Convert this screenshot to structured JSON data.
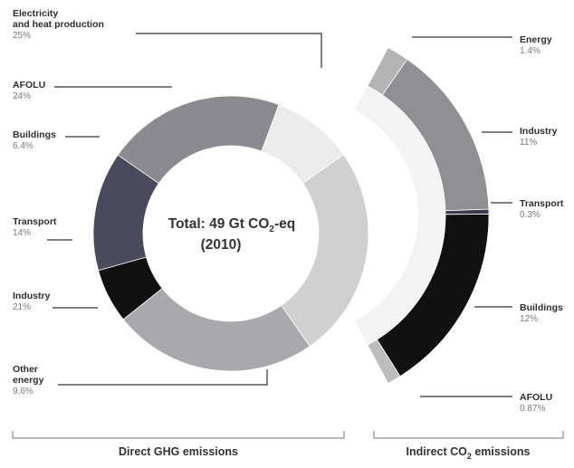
{
  "chart_data": [
    {
      "type": "pie",
      "variant": "donut",
      "group": "Direct GHG emissions",
      "center_label_line1": "Total: 49 Gt CO",
      "center_label_sub": "2",
      "center_label_tail": "-eq",
      "center_label_line2": "(2010)",
      "slices": [
        {
          "name": "Electricity and heat production",
          "label_lines": [
            "Electricity",
            "and heat production"
          ],
          "value_label": "25%",
          "value": 25,
          "color": "#d0d0d0"
        },
        {
          "name": "AFOLU",
          "label_lines": [
            "AFOLU"
          ],
          "value_label": "24%",
          "value": 24,
          "color": "#a9a9ad"
        },
        {
          "name": "Buildings",
          "label_lines": [
            "Buildings"
          ],
          "value_label": "6.4%",
          "value": 6.4,
          "color": "#101010"
        },
        {
          "name": "Transport",
          "label_lines": [
            "Transport"
          ],
          "value_label": "14%",
          "value": 14,
          "color": "#4a4a5c"
        },
        {
          "name": "Industry",
          "label_lines": [
            "Industry"
          ],
          "value_label": "21%",
          "value": 21,
          "color": "#8a8a90"
        },
        {
          "name": "Other energy",
          "label_lines": [
            "Other",
            "energy"
          ],
          "value_label": "9.6%",
          "value": 9.6,
          "color": "#ececec"
        }
      ]
    },
    {
      "type": "pie",
      "variant": "partial-ring",
      "group": "Indirect CO2 emissions",
      "slices": [
        {
          "name": "Energy",
          "label_lines": [
            "Energy"
          ],
          "value_label": "1.4%",
          "value": 1.4,
          "color": "#b4b4b4"
        },
        {
          "name": "Industry",
          "label_lines": [
            "Industry"
          ],
          "value_label": "11%",
          "value": 11,
          "color": "#8f8f94"
        },
        {
          "name": "Transport",
          "label_lines": [
            "Transport"
          ],
          "value_label": "0.3%",
          "value": 0.3,
          "color": "#3a3a48"
        },
        {
          "name": "Buildings",
          "label_lines": [
            "Buildings"
          ],
          "value_label": "12%",
          "value": 12,
          "color": "#111111"
        },
        {
          "name": "AFOLU",
          "label_lines": [
            "AFOLU"
          ],
          "value_label": "0.87%",
          "value": 0.87,
          "color": "#bdbdbd"
        }
      ]
    }
  ],
  "footer": {
    "direct_label": "Direct GHG emissions",
    "indirect_label_pre": "Indirect CO",
    "indirect_label_sub": "2",
    "indirect_label_post": " emissions"
  }
}
